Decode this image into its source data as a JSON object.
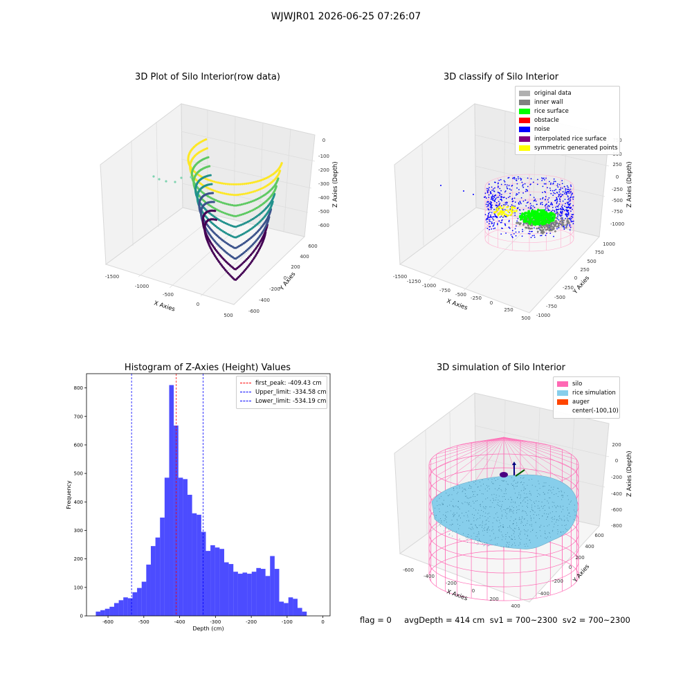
{
  "figure": {
    "suptitle": "WJWJR01 2026-06-25 07:26:07",
    "footer": "flag = 0     avgDepth = 414 cm  sv1 = 700~2300  sv2 = 700~2300"
  },
  "panels": {
    "raw": {
      "title": "3D Plot of Silo Interior(row data)",
      "xlabel": "X Axies",
      "ylabel": "Y Axies",
      "zlabel": "Z Axies (Depth)",
      "xticks": [
        "-1500",
        "-1000",
        "-500",
        "0",
        "500"
      ],
      "yticks": [
        "-600",
        "-400",
        "-200",
        "0",
        "200",
        "400",
        "600"
      ],
      "zticks": [
        "0",
        "-100",
        "-200",
        "-300",
        "-400",
        "-500",
        "-600"
      ],
      "colormap": "viridis"
    },
    "classify": {
      "title": "3D classify of Silo Interior",
      "xlabel": "X Axies",
      "ylabel": "Y Axies",
      "zlabel": "Z Axies (Depth)",
      "xticks": [
        "-1500",
        "-1250",
        "-1000",
        "-750",
        "-500",
        "-250",
        "0",
        "250",
        "500"
      ],
      "yticks": [
        "-1000",
        "-750",
        "-500",
        "-250",
        "0",
        "250",
        "500",
        "750",
        "1000"
      ],
      "zticks": [
        "750",
        "500",
        "250",
        "0",
        "-250",
        "-500",
        "-750",
        "-1000"
      ],
      "legend": [
        {
          "label": "original data",
          "color": "#b0b0b0"
        },
        {
          "label": "inner wall",
          "color": "#808080"
        },
        {
          "label": "rice surface",
          "color": "#00ff00"
        },
        {
          "label": "obstacle",
          "color": "#ff0000"
        },
        {
          "label": "noise",
          "color": "#0000ff"
        },
        {
          "label": "interpolated rice surface",
          "color": "#800080"
        },
        {
          "label": "symmetric generated points",
          "color": "#ffff00"
        }
      ]
    },
    "simulation": {
      "title": "3D simulation of Silo Interior",
      "xlabel": "X Axies",
      "ylabel": "Y Axies",
      "zlabel": "Z Axies (Depth)",
      "xticks": [
        "-600",
        "-400",
        "-200",
        "0",
        "200",
        "400"
      ],
      "yticks": [
        "-400",
        "-200",
        "0",
        "200",
        "400",
        "600"
      ],
      "zticks": [
        "200",
        "0",
        "-200",
        "-400",
        "-600",
        "-800"
      ],
      "legend": [
        {
          "label": "silo",
          "color": "#ff69b4"
        },
        {
          "label": "rice simulation",
          "color": "#87ceeb"
        },
        {
          "label": "auger",
          "color": "#ff4500"
        },
        {
          "label": "center(-100,10)",
          "color": ""
        }
      ]
    }
  },
  "chart_data": {
    "type": "bar",
    "title": "Histogram of Z-Axies (Height) Values",
    "xlabel": "Depth (cm)",
    "ylabel": "Frequency",
    "xlim": [
      -660,
      20
    ],
    "ylim": [
      0,
      850
    ],
    "xticks": [
      -600,
      -500,
      -400,
      -300,
      -200,
      -100,
      0
    ],
    "yticks": [
      0,
      100,
      200,
      300,
      400,
      500,
      600,
      700,
      800
    ],
    "bar_color": "#0000ff",
    "bins": {
      "start": -634,
      "width": 12.8,
      "values": [
        15,
        20,
        25,
        32,
        45,
        55,
        65,
        62,
        83,
        98,
        120,
        180,
        245,
        275,
        345,
        485,
        810,
        668,
        485,
        480,
        425,
        360,
        355,
        295,
        228,
        248,
        240,
        235,
        188,
        182,
        155,
        148,
        152,
        148,
        155,
        168,
        165,
        140,
        210,
        165,
        50,
        45,
        65,
        60,
        28,
        15
      ]
    },
    "vlines": [
      {
        "label": "first_peak: -409.43 cm",
        "x": -409.43,
        "color": "#ff0000"
      },
      {
        "label": "Upper_limit: -334.58 cm",
        "x": -334.58,
        "color": "#0000ff"
      },
      {
        "label": "Lower_limit: -534.19 cm",
        "x": -534.19,
        "color": "#0000ff"
      }
    ],
    "legend_position": "upper-right"
  }
}
